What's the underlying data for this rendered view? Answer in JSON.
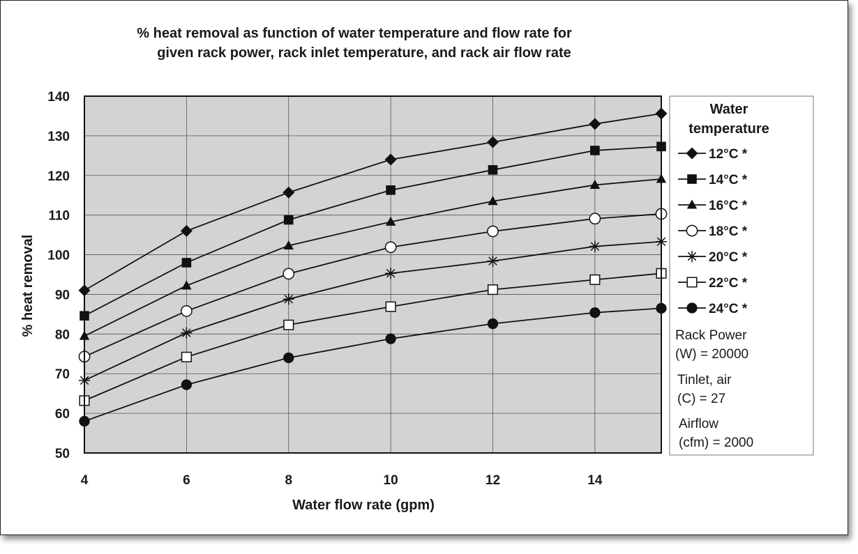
{
  "chart_data": {
    "type": "line",
    "title": [
      "% heat removal as function of water temperature and flow rate for",
      "given rack power, rack inlet temperature, and rack air flow rate"
    ],
    "xlabel": "Water flow rate (gpm)",
    "ylabel": "% heat removal",
    "xlim": [
      4,
      15.3
    ],
    "ylim": [
      50,
      140
    ],
    "xticks": [
      4,
      6,
      8,
      10,
      12,
      14
    ],
    "yticks": [
      50,
      60,
      70,
      80,
      90,
      100,
      110,
      120,
      130,
      140
    ],
    "grid": true,
    "plot_background": "#d3d3d3",
    "legend_position": "right",
    "legend_title": [
      "Water",
      "temperature"
    ],
    "x": [
      4,
      6,
      8,
      10,
      12,
      14,
      15.3
    ],
    "series": [
      {
        "name": "12°C *",
        "marker": "diamond",
        "values": [
          91,
          106,
          115.7,
          124,
          128.4,
          133,
          135.6
        ]
      },
      {
        "name": "14°C *",
        "marker": "square",
        "values": [
          84.6,
          98,
          108.8,
          116.3,
          121.4,
          126.3,
          127.3
        ]
      },
      {
        "name": "16°C *",
        "marker": "triangle",
        "values": [
          79.5,
          92.2,
          102.3,
          108.3,
          113.5,
          117.6,
          119.1
        ]
      },
      {
        "name": "18°C *",
        "marker": "circle-open",
        "values": [
          74.3,
          85.8,
          95.2,
          101.9,
          105.9,
          109.1,
          110.3
        ]
      },
      {
        "name": "20°C *",
        "marker": "star",
        "values": [
          68.3,
          80.3,
          88.8,
          95.3,
          98.4,
          102.1,
          103.3
        ]
      },
      {
        "name": "22°C *",
        "marker": "square-open",
        "values": [
          63.2,
          74.2,
          82.3,
          86.9,
          91.2,
          93.7,
          95.3
        ]
      },
      {
        "name": "24°C *",
        "marker": "circle",
        "values": [
          58,
          67.2,
          74,
          78.8,
          82.6,
          85.4,
          86.5
        ]
      }
    ],
    "annotations": [
      [
        "Rack Power",
        "(W) = 20000"
      ],
      [
        "Tinlet, air",
        "(C) = 27"
      ],
      [
        "Airflow",
        "(cfm) = 2000"
      ]
    ]
  }
}
